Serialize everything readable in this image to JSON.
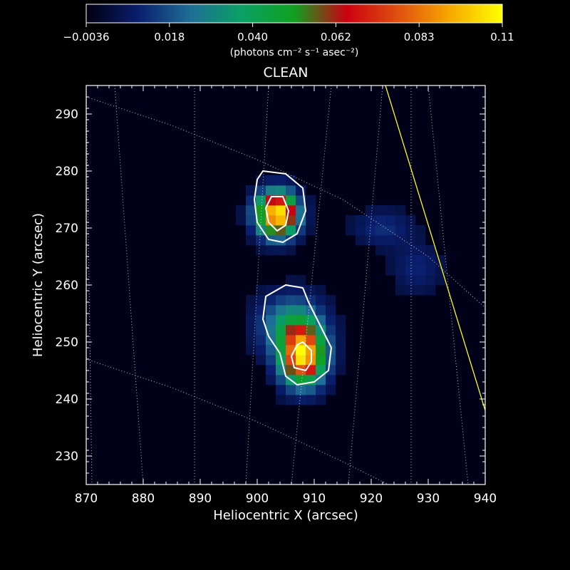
{
  "chart_data": {
    "type": "heatmap",
    "title": "CLEAN",
    "xlabel": "Heliocentric X (arcsec)",
    "ylabel": "Heliocentric Y (arcsec)",
    "xlim": [
      870,
      940
    ],
    "ylim": [
      225,
      295
    ],
    "x_ticks": [
      870,
      880,
      890,
      900,
      910,
      920,
      930,
      940
    ],
    "y_ticks": [
      230,
      240,
      250,
      260,
      270,
      280,
      290
    ],
    "colorbar": {
      "unit_label": "(photons cm⁻² s⁻¹ asec⁻²)",
      "ticks": [
        "−0.0036",
        "0.018",
        "0.040",
        "0.062",
        "0.083",
        "0.11"
      ],
      "range": [
        -0.0036,
        0.11
      ],
      "colormap": [
        "#000010",
        "#0a1e6e",
        "#1e6e96",
        "#0aa064",
        "#10a020",
        "#cc0010",
        "#e05010",
        "#f8a800",
        "#ffff00"
      ]
    },
    "sources": [
      {
        "x": 903.5,
        "y": 272.5,
        "peak": 0.11,
        "sigma_x": 2.4,
        "sigma_y": 2.6
      },
      {
        "x": 908.0,
        "y": 247.5,
        "peak": 0.1,
        "sigma_x": 2.6,
        "sigma_y": 3.4
      },
      {
        "x": 906.0,
        "y": 253.0,
        "peak": 0.035,
        "sigma_x": 3.8,
        "sigma_y": 3.5
      },
      {
        "x": 922.0,
        "y": 270.0,
        "peak": 0.012,
        "sigma_x": 3.5,
        "sigma_y": 2.2
      },
      {
        "x": 928.0,
        "y": 263.0,
        "peak": 0.01,
        "sigma_x": 3.0,
        "sigma_y": 3.0
      }
    ],
    "contours": [
      {
        "level": "outer",
        "points": [
          [
            901,
            280
          ],
          [
            905,
            279.5
          ],
          [
            908,
            277
          ],
          [
            908.5,
            273
          ],
          [
            907,
            269
          ],
          [
            904.5,
            267.5
          ],
          [
            902,
            268
          ],
          [
            900,
            271
          ],
          [
            899.5,
            275
          ],
          [
            900,
            278.5
          ]
        ]
      },
      {
        "level": "inner",
        "points": [
          [
            902.5,
            275.5
          ],
          [
            904.5,
            275.5
          ],
          [
            905.5,
            273
          ],
          [
            905,
            270.5
          ],
          [
            903.5,
            269.5
          ],
          [
            902,
            271
          ],
          [
            901.5,
            273.5
          ]
        ]
      },
      {
        "level": "outer",
        "points": [
          [
            905,
            260
          ],
          [
            908,
            259.5
          ],
          [
            909,
            257
          ],
          [
            911,
            253
          ],
          [
            913,
            249
          ],
          [
            912.5,
            245
          ],
          [
            910,
            243
          ],
          [
            907,
            242.5
          ],
          [
            905,
            244
          ],
          [
            904,
            248
          ],
          [
            902,
            251
          ],
          [
            901,
            254
          ],
          [
            901.5,
            258
          ]
        ]
      },
      {
        "level": "inner",
        "points": [
          [
            908,
            250
          ],
          [
            909.5,
            248.5
          ],
          [
            909.5,
            246.5
          ],
          [
            908.5,
            245
          ],
          [
            906.5,
            245.5
          ],
          [
            906,
            247.5
          ],
          [
            907,
            249.5
          ]
        ]
      }
    ],
    "limb_line": {
      "points": [
        [
          922.5,
          295
        ],
        [
          940,
          238
        ]
      ],
      "color": "#ffff00"
    },
    "grid": "heliographic dotted"
  }
}
